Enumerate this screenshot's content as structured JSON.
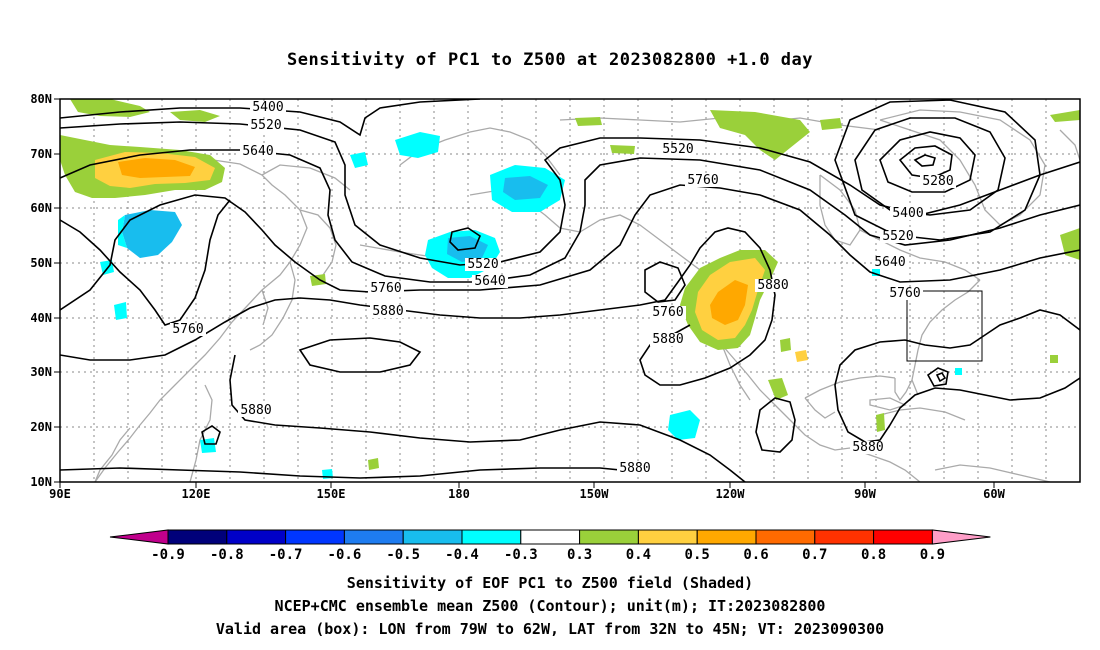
{
  "title": "Sensitivity of PC1 to Z500 at 2023082800 +1.0 day",
  "map": {
    "lat_labels": [
      "80N",
      "70N",
      "60N",
      "50N",
      "40N",
      "30N",
      "20N",
      "10N"
    ],
    "lon_labels": [
      "90E",
      "120E",
      "150E",
      "180",
      "150W",
      "120W",
      "90W",
      "60W"
    ],
    "contour_labels": [
      "5400",
      "5520",
      "5640",
      "5520",
      "5640",
      "5760",
      "5880",
      "5760",
      "5880",
      "5880",
      "5520",
      "5760",
      "5280",
      "5400",
      "5520",
      "5640",
      "5760",
      "5880",
      "5760",
      "5880",
      "5880",
      "5880"
    ],
    "valid_box": {
      "lon_range": "79W-62W",
      "lat_range": "32N-45N"
    }
  },
  "colorbar": {
    "labels": [
      "-0.9",
      "-0.8",
      "-0.7",
      "-0.6",
      "-0.5",
      "-0.4",
      "-0.3",
      "0.3",
      "0.4",
      "0.5",
      "0.6",
      "0.7",
      "0.8",
      "0.9"
    ],
    "colors": [
      "#c0008c",
      "#00007a",
      "#0000c8",
      "#0036ff",
      "#1e7cf0",
      "#18bdee",
      "#00ffff",
      "#ffffff",
      "#9ad03a",
      "#ffd040",
      "#ffa800",
      "#ff6a00",
      "#ff3200",
      "#ff0000",
      "#ff9ec8"
    ]
  },
  "captions": {
    "line1": "Sensitivity of EOF PC1 to Z500 field (Shaded)",
    "line2": "NCEP+CMC ensemble mean Z500 (Contour); unit(m); IT:2023082800",
    "line3": "Valid area (box): LON from 79W to 62W, LAT from 32N to 45N; VT: 2023090300"
  }
}
